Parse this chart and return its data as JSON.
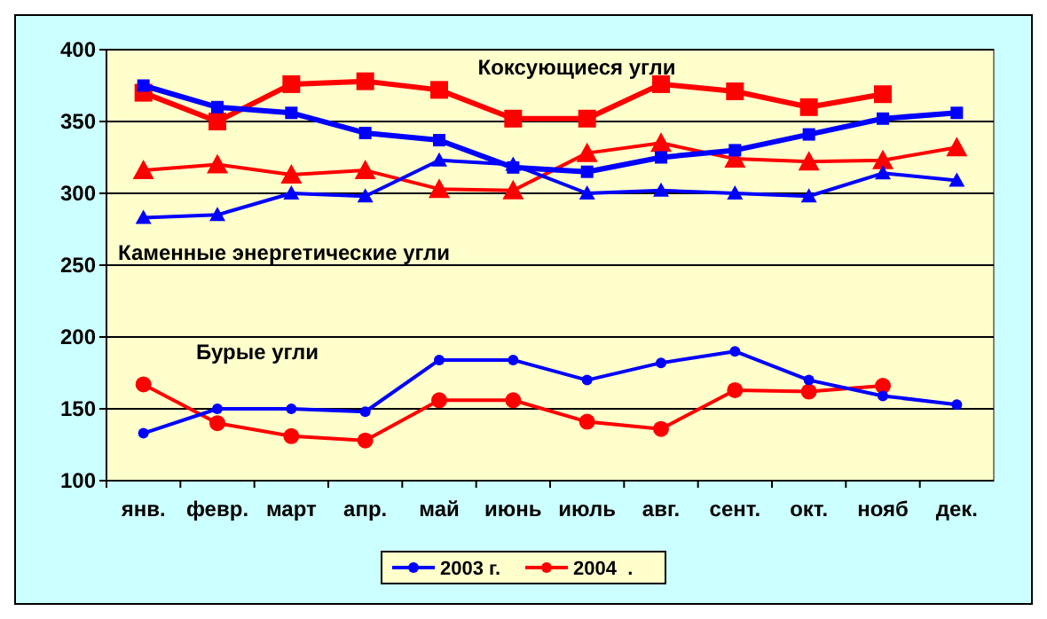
{
  "chart_data": {
    "type": "line",
    "categories": [
      "янв.",
      "февр.",
      "март",
      "апр.",
      "май",
      "июнь",
      "июль",
      "авг.",
      "сент.",
      "окт.",
      "нояб",
      "дек."
    ],
    "ylim": [
      100,
      400
    ],
    "yticks": [
      100,
      150,
      200,
      250,
      300,
      350,
      400
    ],
    "grid": "y",
    "legend": "bottom",
    "series": [
      {
        "color": "#0000ff",
        "marker": "square",
        "values": [
          375,
          360,
          356,
          342,
          337,
          318,
          315,
          325,
          330,
          341,
          352,
          356
        ]
      },
      {
        "color": "#ff0000",
        "marker": "square",
        "values": [
          370,
          350,
          376,
          378,
          372,
          352,
          352,
          376,
          371,
          360,
          369,
          null
        ]
      },
      {
        "color": "#0000ff",
        "marker": "triangle",
        "values": [
          283,
          285,
          300,
          298,
          323,
          320,
          300,
          302,
          300,
          298,
          314,
          309
        ]
      },
      {
        "color": "#ff0000",
        "marker": "triangle",
        "values": [
          316,
          320,
          313,
          316,
          303,
          302,
          328,
          335,
          324,
          322,
          323,
          332
        ]
      },
      {
        "name": "2003 г.",
        "color": "#0000ff",
        "marker": "circle",
        "values": [
          133,
          150,
          150,
          148,
          184,
          184,
          170,
          182,
          190,
          170,
          159,
          153
        ]
      },
      {
        "name": "2004  .",
        "color": "#ff0000",
        "marker": "circle",
        "values": [
          167,
          140,
          131,
          128,
          156,
          156,
          141,
          136,
          163,
          162,
          166,
          null
        ]
      }
    ],
    "annotations": [
      "Коксующиеся угли",
      "Каменные энергетические угли",
      "Бурые угли"
    ]
  }
}
